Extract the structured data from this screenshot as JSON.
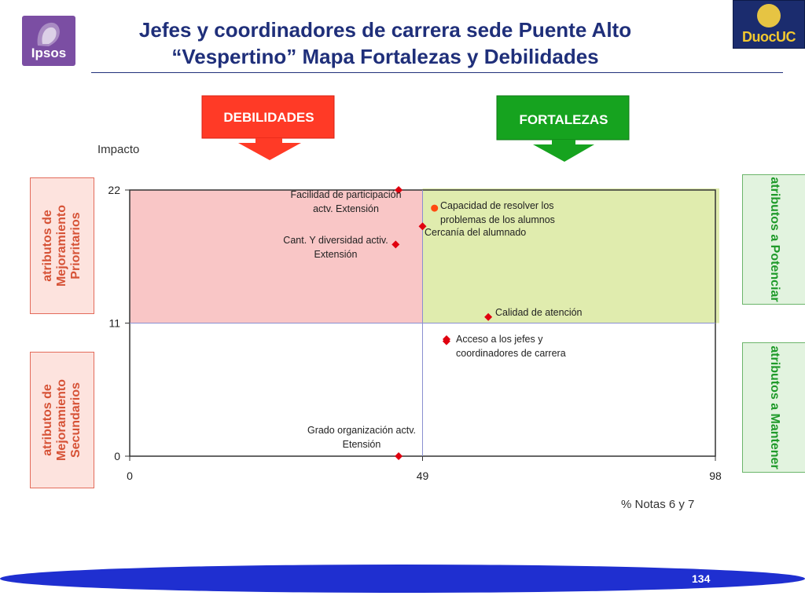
{
  "slide": {
    "title_line1": "Jefes y coordinadores de carrera sede Puente Alto",
    "title_line2": "“Vespertino” Mapa Fortalezas y Debilidades",
    "logo_left_text": "Ipsos",
    "logo_right_text": "DuocUC",
    "page_number": "134"
  },
  "headers": {
    "debilidades": "DEBILIDADES",
    "fortalezas": "FORTALEZAS"
  },
  "side_labels": {
    "left_top": "atributos de Mejoramiento Prioritarios",
    "left_bottom": "atributos de Mejoramiento Secundarios",
    "right_top": "atributos a Potenciar",
    "right_bottom": "atributos a Mantener"
  },
  "colors": {
    "title": "#1f2f7a",
    "debilidades_fill": "#ff3a26",
    "fortalezas_fill": "#16a31f",
    "quadrant_weak": "#f9c6c6",
    "quadrant_strong": "#e0ecae",
    "point": "#e0000f",
    "point_orange": "#ff4a10",
    "footer": "#1f2fd0"
  },
  "chart_data": {
    "type": "scatter",
    "ylabel": "Impacto",
    "xlabel": "% Notas 6 y 7",
    "xlim": [
      0,
      98
    ],
    "ylim": [
      0,
      22
    ],
    "x_ticks": [
      0,
      49,
      98
    ],
    "y_ticks": [
      0,
      11,
      22
    ],
    "cut_x": 49,
    "cut_y": 11,
    "points": [
      {
        "label_lines": [
          "Facilidad de participación",
          "actv. Extensión"
        ],
        "x": 45,
        "y": 22,
        "marker": "diamond"
      },
      {
        "label_lines": [
          "Capacidad de resolver los",
          "problemas de los alumnos"
        ],
        "x": 51,
        "y": 20.5,
        "marker": "circle"
      },
      {
        "label_lines": [
          "Cercanía del alumnado"
        ],
        "x": 49,
        "y": 19,
        "marker": "diamond"
      },
      {
        "label_lines": [
          "Cant. Y diversidad activ.",
          "Extensión"
        ],
        "x": 44.5,
        "y": 17.5,
        "marker": "diamond"
      },
      {
        "label_lines": [
          "Calidad de atención"
        ],
        "x": 60,
        "y": 11.5,
        "marker": "diamond"
      },
      {
        "label_lines": [
          "Acceso a los jefes y",
          "coordinadores de carrera"
        ],
        "x": 53,
        "y": 9.5,
        "marker": "diamond"
      },
      {
        "label_lines": [
          "Grado organización actv.",
          "Etensión"
        ],
        "x": 45,
        "y": 0,
        "marker": "diamond"
      }
    ]
  }
}
